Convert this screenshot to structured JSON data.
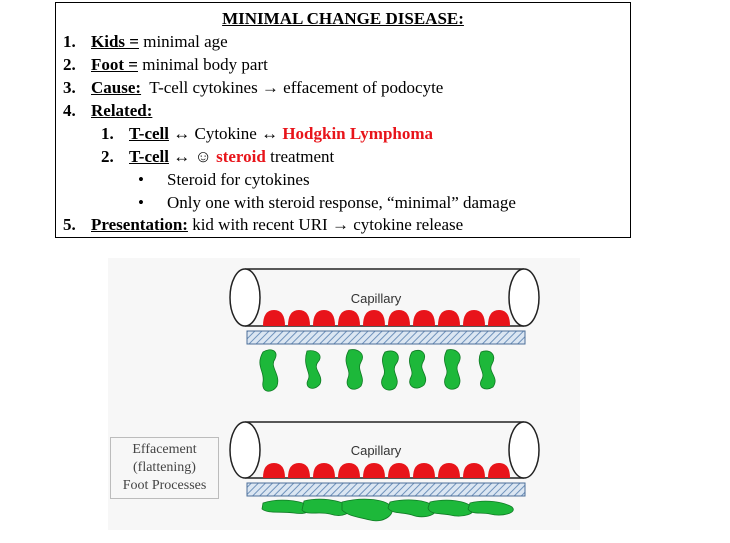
{
  "title": "MINIMAL CHANGE DISEASE:",
  "items": [
    {
      "num": "1.",
      "key": "Kids =",
      "text": " minimal age"
    },
    {
      "num": "2.",
      "key": "Foot =",
      "text": " minimal body part"
    },
    {
      "num": "3.",
      "key": "Cause:",
      "text": "  T-cell cytokines → effacement of podocyte"
    },
    {
      "num": "4.",
      "key": "Related:",
      "text": ""
    },
    {
      "num": "5.",
      "key": "Presentation:",
      "text": " kid with recent URI → cytokine release"
    }
  ],
  "related": [
    {
      "num": "1.",
      "key": "T-cell",
      "text_before": " ↔ Cytokine ↔ ",
      "red": "Hodgkin Lymphoma",
      "text_after": ""
    },
    {
      "num": "2.",
      "key": "T-cell",
      "text_before": " ↔ ☺ ",
      "red": "steroid",
      "text_after": " treatment"
    }
  ],
  "bullets": [
    "Steroid for cytokines",
    "Only one with steroid response, “minimal” damage"
  ],
  "figure": {
    "top_label": "Capillary",
    "bottom_label": "Capillary",
    "legend": [
      "Effacement",
      "(flattening)",
      "Foot Processes"
    ],
    "colors": {
      "red_cells": "#e8141a",
      "podocytes": "#1db83a",
      "membrane": "#a8c4e0"
    }
  }
}
